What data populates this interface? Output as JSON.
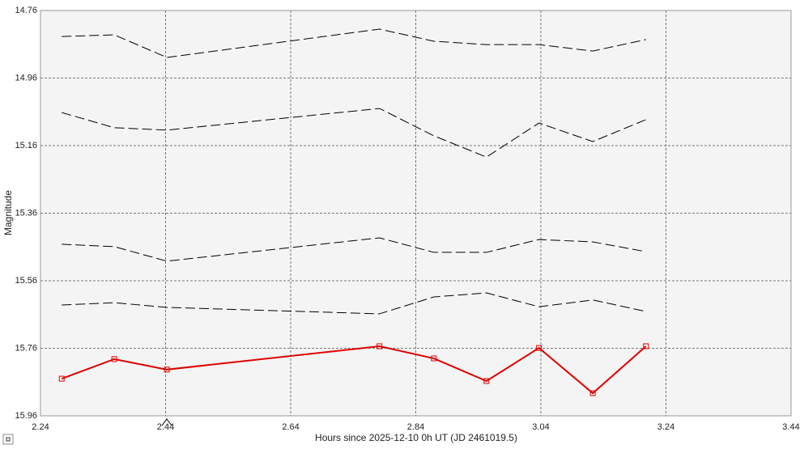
{
  "chart_data": {
    "type": "line",
    "x_label": "Hours since 2025-12-10 0h UT (JD 2461019.5)",
    "y_label": "Magnitude",
    "xlim": [
      2.24,
      3.44
    ],
    "xticks": [
      2.24,
      2.44,
      2.64,
      2.84,
      3.04,
      3.24,
      3.44
    ],
    "ylim": [
      15.96,
      14.76
    ],
    "yticks": [
      14.76,
      14.96,
      15.16,
      15.36,
      15.56,
      15.76,
      15.96
    ],
    "grid": true,
    "x": [
      2.274,
      2.358,
      2.442,
      2.782,
      2.869,
      2.953,
      3.037,
      3.123,
      3.208
    ],
    "series": [
      {
        "color": "#000000",
        "values": [
          14.837,
          14.832,
          14.899,
          14.815,
          14.851,
          14.861,
          14.861,
          14.88,
          14.846
        ]
      },
      {
        "color": "#000000",
        "values": [
          15.062,
          15.107,
          15.114,
          15.05,
          15.131,
          15.194,
          15.093,
          15.148,
          15.083
        ]
      },
      {
        "color": "#000000",
        "values": [
          15.452,
          15.459,
          15.502,
          15.433,
          15.476,
          15.476,
          15.438,
          15.445,
          15.474
        ]
      },
      {
        "color": "#000000",
        "values": [
          15.632,
          15.625,
          15.639,
          15.658,
          15.608,
          15.596,
          15.637,
          15.617,
          15.651
        ]
      },
      {
        "color": "#e00000",
        "values": [
          15.85,
          15.792,
          15.823,
          15.754,
          15.79,
          15.857,
          15.759,
          15.893,
          15.754
        ]
      }
    ]
  }
}
